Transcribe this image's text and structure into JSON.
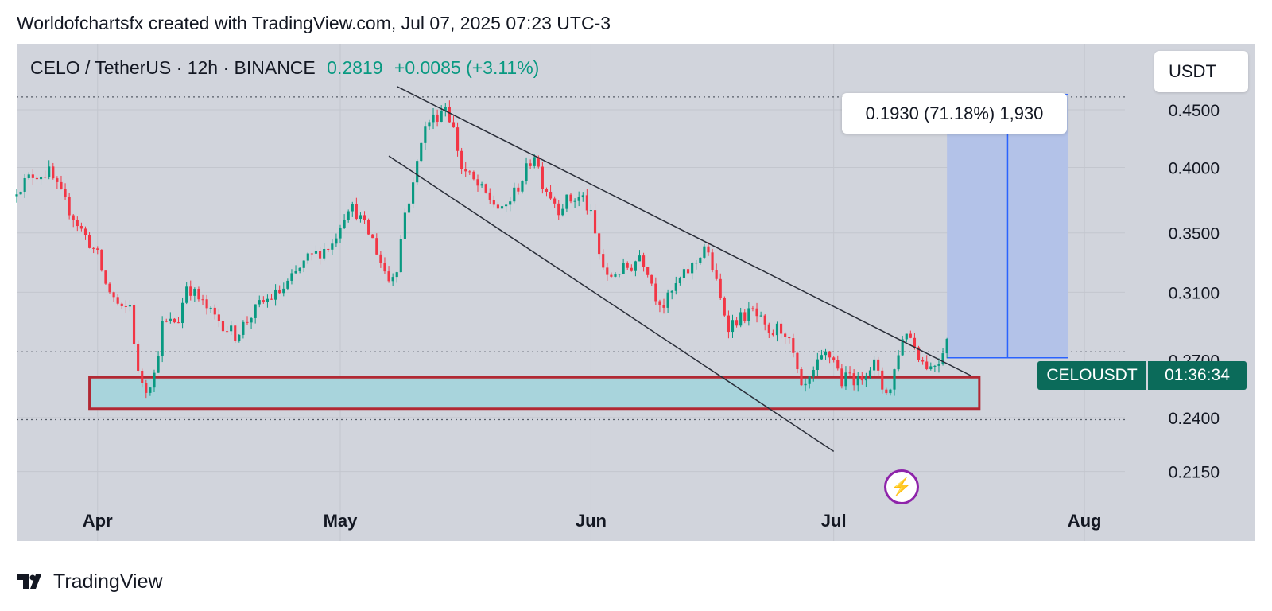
{
  "header": {
    "credit": "Worldofchartsfx created with TradingView.com, Jul 07, 2025 07:23 UTC-3"
  },
  "symbol": {
    "name": "CELO / TetherUS · 12h · BINANCE",
    "price": "0.2819",
    "change": "+0.0085 (+3.11%)"
  },
  "currency": "USDT",
  "measure_label": "0.1930 (71.18%) 1,930",
  "badges": {
    "symbol": "CELOUSDT",
    "timer": "01:36:34",
    "bolt_icon": "lightning-icon"
  },
  "footer": {
    "brand": "TradingView",
    "logo_icon": "tradingview-logo-icon"
  },
  "colors": {
    "up": "#089981",
    "down": "#f23645",
    "plot_bg": "#d1d4dc",
    "support_zone": "#a8d4dc",
    "support_border": "#b22833",
    "measure_fill": "#b3c2e8",
    "measure_line": "#2962ff",
    "badge": "#0b6b5a"
  },
  "chart_data": {
    "type": "candlestick",
    "timeframe": "12h",
    "x_tick_labels": [
      "Apr",
      "May",
      "Jun",
      "Jul",
      "Aug"
    ],
    "x_tick_dates": [
      "2025-04-01",
      "2025-05-01",
      "2025-06-01",
      "2025-07-01",
      "2025-08-01"
    ],
    "x_range": [
      "2025-03-22",
      "2025-08-06"
    ],
    "y_tick_labels": [
      "0.4500",
      "0.4000",
      "0.3500",
      "0.3100",
      "0.2700",
      "0.2400",
      "0.2150"
    ],
    "y_scale": "log",
    "y_range": [
      0.203,
      0.515
    ],
    "grid": true,
    "close_path": [
      [
        "2025-03-22",
        0.383
      ],
      [
        "2025-03-24",
        0.394
      ],
      [
        "2025-03-26",
        0.396
      ],
      [
        "2025-03-28",
        0.372
      ],
      [
        "2025-03-30",
        0.352
      ],
      [
        "2025-04-01",
        0.334
      ],
      [
        "2025-04-02",
        0.315
      ],
      [
        "2025-04-04",
        0.298
      ],
      [
        "2025-04-05",
        0.302
      ],
      [
        "2025-04-06",
        0.262
      ],
      [
        "2025-04-07",
        0.255
      ],
      [
        "2025-04-08",
        0.262
      ],
      [
        "2025-04-09",
        0.29
      ],
      [
        "2025-04-11",
        0.293
      ],
      [
        "2025-04-12",
        0.315
      ],
      [
        "2025-04-15",
        0.297
      ],
      [
        "2025-04-18",
        0.284
      ],
      [
        "2025-04-21",
        0.302
      ],
      [
        "2025-04-24",
        0.312
      ],
      [
        "2025-04-27",
        0.332
      ],
      [
        "2025-04-30",
        0.342
      ],
      [
        "2025-05-01",
        0.357
      ],
      [
        "2025-05-02",
        0.37
      ],
      [
        "2025-05-03",
        0.365
      ],
      [
        "2025-05-05",
        0.345
      ],
      [
        "2025-05-06",
        0.33
      ],
      [
        "2025-05-07",
        0.318
      ],
      [
        "2025-05-08",
        0.327
      ],
      [
        "2025-05-09",
        0.365
      ],
      [
        "2025-05-10",
        0.385
      ],
      [
        "2025-05-11",
        0.425
      ],
      [
        "2025-05-12",
        0.44
      ],
      [
        "2025-05-13",
        0.445
      ],
      [
        "2025-05-14",
        0.455
      ],
      [
        "2025-05-15",
        0.432
      ],
      [
        "2025-05-16",
        0.4
      ],
      [
        "2025-05-18",
        0.385
      ],
      [
        "2025-05-20",
        0.372
      ],
      [
        "2025-05-21",
        0.365
      ],
      [
        "2025-05-23",
        0.385
      ],
      [
        "2025-05-24",
        0.398
      ],
      [
        "2025-05-25",
        0.412
      ],
      [
        "2025-05-26",
        0.388
      ],
      [
        "2025-05-27",
        0.378
      ],
      [
        "2025-05-28",
        0.368
      ],
      [
        "2025-05-29",
        0.374
      ],
      [
        "2025-05-31",
        0.376
      ],
      [
        "2025-06-01",
        0.362
      ],
      [
        "2025-06-02",
        0.335
      ],
      [
        "2025-06-03",
        0.318
      ],
      [
        "2025-06-04",
        0.323
      ],
      [
        "2025-06-06",
        0.327
      ],
      [
        "2025-06-07",
        0.335
      ],
      [
        "2025-06-08",
        0.325
      ],
      [
        "2025-06-09",
        0.308
      ],
      [
        "2025-06-10",
        0.302
      ],
      [
        "2025-06-12",
        0.318
      ],
      [
        "2025-06-14",
        0.33
      ],
      [
        "2025-06-15",
        0.341
      ],
      [
        "2025-06-16",
        0.326
      ],
      [
        "2025-06-17",
        0.305
      ],
      [
        "2025-06-18",
        0.29
      ],
      [
        "2025-06-19",
        0.293
      ],
      [
        "2025-06-21",
        0.298
      ],
      [
        "2025-06-22",
        0.292
      ],
      [
        "2025-06-23",
        0.282
      ],
      [
        "2025-06-24",
        0.288
      ],
      [
        "2025-06-25",
        0.286
      ],
      [
        "2025-06-26",
        0.272
      ],
      [
        "2025-06-27",
        0.253
      ],
      [
        "2025-06-28",
        0.258
      ],
      [
        "2025-06-29",
        0.267
      ],
      [
        "2025-06-30",
        0.273
      ],
      [
        "2025-07-01",
        0.271
      ],
      [
        "2025-07-02",
        0.258
      ],
      [
        "2025-07-03",
        0.262
      ],
      [
        "2025-07-04",
        0.258
      ],
      [
        "2025-07-05",
        0.265
      ],
      [
        "2025-07-06",
        0.268
      ],
      [
        "2025-07-07",
        0.255
      ],
      [
        "2025-07-08",
        0.254
      ],
      [
        "2025-07-09",
        0.275
      ],
      [
        "2025-07-10",
        0.287
      ],
      [
        "2025-07-11",
        0.278
      ],
      [
        "2025-07-12",
        0.269
      ],
      [
        "2025-07-13",
        0.266
      ],
      [
        "2025-07-14",
        0.27
      ],
      [
        "2025-07-15",
        0.2819
      ]
    ],
    "descending_channel": {
      "upper": [
        [
          "2025-05-08",
          0.472
        ],
        [
          "2025-07-18",
          0.2614
        ]
      ],
      "lower": [
        [
          "2025-05-07",
          0.4095
        ],
        [
          "2025-07-01",
          0.224
        ]
      ]
    },
    "support_zone": {
      "from": "2025-03-31",
      "to": "2025-07-19",
      "low": 0.2444,
      "high": 0.2606
    },
    "horizontal_levels": [
      0.462,
      0.2745,
      0.239
    ],
    "price_range_measure": {
      "from_date": "2025-07-15",
      "to_date": "2025-07-30",
      "low": 0.2712,
      "high": 0.4642,
      "change": 0.193,
      "percent": 71.18,
      "ticks": 1930
    }
  }
}
